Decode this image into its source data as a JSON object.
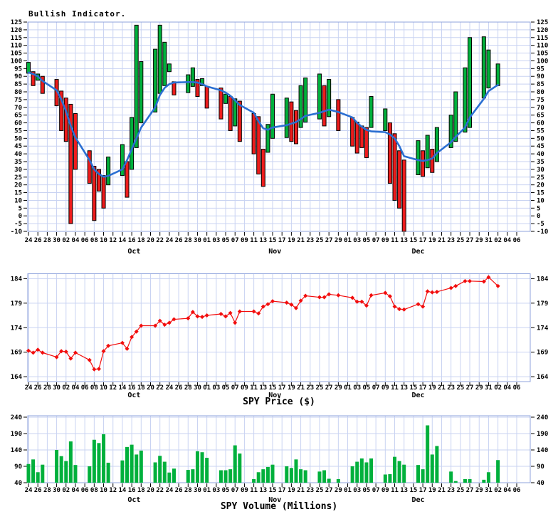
{
  "colors": {
    "background": "#ffffff",
    "grid": "#c9d3f2",
    "plot_border": "#8fa3dc",
    "tick": "#000000",
    "text": "#000000",
    "bar_up_green": "#00b03c",
    "bar_down_red": "#ee1c1c",
    "ma_line_blue": "#2b6fd2",
    "price_line_red": "#f20d0d",
    "volume_green": "#00b03c"
  },
  "x_axis": {
    "start_date": "Sep 24",
    "end_date": "Jan 06",
    "tick_step_days": 2,
    "tick_positions": [
      0,
      2,
      4,
      6,
      8,
      10,
      12,
      14,
      16,
      18,
      20,
      22,
      24,
      26,
      28,
      30,
      32,
      34,
      36,
      38,
      40,
      42,
      44,
      46,
      48,
      50,
      52,
      54,
      56,
      58,
      60,
      62,
      64,
      66,
      68,
      70,
      72,
      74,
      76,
      78,
      80,
      82,
      84,
      86,
      88,
      90,
      92,
      94,
      96,
      98,
      100,
      102,
      104
    ],
    "tick_labels": [
      "24",
      "26",
      "28",
      "30",
      "02",
      "04",
      "06",
      "08",
      "10",
      "12",
      "14",
      "16",
      "18",
      "20",
      "22",
      "24",
      "26",
      "28",
      "30",
      "01",
      "03",
      "05",
      "07",
      "09",
      "11",
      "13",
      "15",
      "17",
      "19",
      "21",
      "23",
      "25",
      "27",
      "29",
      "01",
      "03",
      "05",
      "07",
      "09",
      "11",
      "13",
      "15",
      "17",
      "19",
      "21",
      "23",
      "25",
      "27",
      "29",
      "31",
      "02",
      "04",
      "06"
    ],
    "month_labels": [
      {
        "pos": 22.5,
        "label": "Oct"
      },
      {
        "pos": 52.5,
        "label": "Nov"
      },
      {
        "pos": 83.0,
        "label": "Dec"
      }
    ]
  },
  "trading_days": {
    "dates": [
      "Sep 24",
      "Sep 25",
      "Sep 26",
      "Sep 27",
      "Sep 30",
      "Oct 01",
      "Oct 02",
      "Oct 03",
      "Oct 04",
      "Oct 07",
      "Oct 08",
      "Oct 09",
      "Oct 10",
      "Oct 11",
      "Oct 14",
      "Oct 15",
      "Oct 16",
      "Oct 17",
      "Oct 18",
      "Oct 21",
      "Oct 22",
      "Oct 23",
      "Oct 24",
      "Oct 25",
      "Oct 28",
      "Oct 29",
      "Oct 30",
      "Oct 31",
      "Nov 01",
      "Nov 04",
      "Nov 05",
      "Nov 06",
      "Nov 07",
      "Nov 08",
      "Nov 11",
      "Nov 12",
      "Nov 13",
      "Nov 14",
      "Nov 15",
      "Nov 18",
      "Nov 19",
      "Nov 20",
      "Nov 21",
      "Nov 22",
      "Nov 25",
      "Nov 26",
      "Nov 27",
      "Nov 29",
      "Dec 02",
      "Dec 03",
      "Dec 04",
      "Dec 05",
      "Dec 06",
      "Dec 09",
      "Dec 10",
      "Dec 11",
      "Dec 12",
      "Dec 13",
      "Dec 16",
      "Dec 17",
      "Dec 18",
      "Dec 19",
      "Dec 20",
      "Dec 23",
      "Dec 24",
      "Dec 26",
      "Dec 27",
      "Dec 30",
      "Dec 31",
      "Jan 02"
    ],
    "day_offsets": [
      0,
      1,
      2,
      3,
      6,
      7,
      8,
      9,
      10,
      13,
      14,
      15,
      16,
      17,
      20,
      21,
      22,
      23,
      24,
      27,
      28,
      29,
      30,
      31,
      34,
      35,
      36,
      37,
      38,
      41,
      42,
      43,
      44,
      45,
      48,
      49,
      50,
      51,
      52,
      55,
      56,
      57,
      58,
      59,
      62,
      63,
      64,
      66,
      69,
      70,
      71,
      72,
      73,
      76,
      77,
      78,
      79,
      80,
      83,
      84,
      85,
      86,
      87,
      90,
      91,
      93,
      94,
      97,
      98,
      100
    ]
  },
  "chart_data": [
    {
      "type": "bar",
      "title": "Bullish Indicator.",
      "ylim": [
        -10,
        125
      ],
      "yticks": [
        -10,
        -5,
        0,
        5,
        10,
        15,
        20,
        25,
        30,
        35,
        40,
        45,
        50,
        55,
        60,
        65,
        70,
        75,
        80,
        85,
        90,
        95,
        100,
        105,
        110,
        115,
        120,
        125
      ],
      "grid": true,
      "legend_position": "none",
      "bars": {
        "lo": [
          92,
          84,
          87.5,
          79,
          71,
          55,
          48,
          -5,
          30,
          21,
          -3,
          16,
          5,
          20,
          26,
          12,
          30,
          44,
          60,
          67,
          79,
          84,
          93,
          78,
          79.5,
          83.5,
          77,
          84,
          69.5,
          62.5,
          72.5,
          55,
          58,
          48,
          40,
          27,
          19,
          41,
          50,
          50.5,
          48,
          46.5,
          57,
          60.5,
          62.5,
          58,
          64,
          55,
          45,
          40.5,
          44,
          37.5,
          57,
          55,
          21,
          10,
          5,
          -10,
          26.5,
          25.5,
          31,
          28,
          35,
          44,
          48,
          54,
          57,
          76,
          82.5,
          84
        ],
        "hi": [
          99,
          93,
          91.5,
          90,
          88,
          80.5,
          76,
          72,
          66,
          42,
          32,
          30,
          26,
          38,
          46,
          35,
          63.5,
          123,
          99.5,
          107.5,
          123,
          112,
          98,
          86.5,
          91,
          95.5,
          88,
          88.5,
          83.5,
          82.5,
          78.5,
          77,
          75.5,
          74,
          66,
          64,
          43,
          59,
          78.5,
          76,
          73.5,
          68,
          84,
          89,
          91.5,
          84,
          88,
          75,
          63.5,
          60.5,
          58,
          57,
          77,
          69,
          60,
          53,
          42,
          36,
          48.5,
          42,
          52,
          43,
          57,
          65,
          80,
          95.5,
          115,
          115.5,
          107,
          98
        ],
        "colors": [
          "g",
          "r",
          "g",
          "r",
          "r",
          "r",
          "r",
          "r",
          "r",
          "r",
          "r",
          "r",
          "r",
          "g",
          "g",
          "r",
          "g",
          "g",
          "g",
          "g",
          "g",
          "g",
          "g",
          "r",
          "g",
          "g",
          "r",
          "g",
          "r",
          "r",
          "g",
          "r",
          "g",
          "r",
          "r",
          "r",
          "r",
          "g",
          "g",
          "g",
          "r",
          "r",
          "g",
          "g",
          "g",
          "r",
          "g",
          "r",
          "r",
          "r",
          "r",
          "r",
          "g",
          "g",
          "r",
          "r",
          "r",
          "r",
          "g",
          "r",
          "g",
          "r",
          "g",
          "g",
          "g",
          "g",
          "g",
          "g",
          "g",
          "g"
        ]
      },
      "line": {
        "name": "moving average",
        "values": [
          92.5,
          91.5,
          90,
          87,
          81,
          75,
          67.5,
          58,
          50.5,
          36,
          30,
          27,
          25.2,
          25.8,
          30,
          36,
          43,
          50,
          57,
          70,
          78,
          82.5,
          85,
          86,
          86.3,
          86.3,
          86,
          85,
          83.5,
          81,
          79.5,
          77.5,
          74.5,
          71.5,
          66.5,
          61,
          56.5,
          55.5,
          57,
          58.5,
          59.5,
          60.5,
          62.5,
          64.5,
          66.5,
          67.5,
          68.5,
          67,
          63.5,
          60,
          57.5,
          55.5,
          54.5,
          54,
          52.5,
          50,
          45,
          38.5,
          36,
          35.5,
          36,
          37,
          40.5,
          47.5,
          51,
          57,
          63.5,
          75.5,
          80.5,
          84.5
        ]
      }
    },
    {
      "type": "line",
      "title": "SPY Price ($)",
      "ylim": [
        163,
        185
      ],
      "yticks": [
        164,
        169,
        174,
        179,
        184
      ],
      "grid": true,
      "marker": "diamond",
      "values": [
        169.3,
        168.9,
        169.5,
        168.9,
        168.0,
        169.2,
        169.1,
        167.7,
        168.9,
        167.4,
        165.5,
        165.6,
        169.2,
        170.3,
        170.9,
        169.7,
        172.1,
        173.2,
        174.4,
        174.4,
        175.4,
        174.6,
        175.0,
        175.7,
        175.9,
        177.2,
        176.3,
        176.2,
        176.5,
        176.8,
        176.3,
        177.0,
        175.0,
        177.3,
        177.3,
        176.9,
        178.3,
        178.8,
        179.4,
        179.1,
        178.7,
        178.0,
        179.5,
        180.5,
        180.2,
        180.2,
        180.8,
        180.6,
        180.1,
        179.3,
        179.3,
        178.5,
        180.6,
        181.1,
        180.4,
        178.3,
        177.8,
        177.7,
        178.8,
        178.3,
        181.4,
        181.2,
        181.3,
        182.1,
        182.5,
        183.5,
        183.5,
        183.4,
        184.3,
        182.5
      ]
    },
    {
      "type": "bar",
      "title": "SPY Volume (Millions)",
      "ylim": [
        40,
        244
      ],
      "yticks": [
        40,
        90,
        140,
        190,
        240
      ],
      "grid": true,
      "baseline": 40,
      "values": [
        97,
        111,
        72,
        95,
        140,
        121,
        106,
        166,
        94,
        90,
        171,
        161,
        188,
        101,
        108,
        149,
        156,
        126,
        138,
        102,
        122,
        104,
        71,
        83,
        79,
        81,
        136,
        133,
        116,
        78,
        78,
        81,
        154,
        129,
        51,
        72,
        81,
        88,
        95,
        90,
        85,
        111,
        81,
        78,
        74,
        78,
        52,
        51,
        90,
        104,
        114,
        102,
        114,
        65,
        66,
        119,
        106,
        95,
        94,
        81,
        215,
        126,
        152,
        74,
        45,
        51,
        51,
        49,
        72,
        109
      ]
    }
  ]
}
